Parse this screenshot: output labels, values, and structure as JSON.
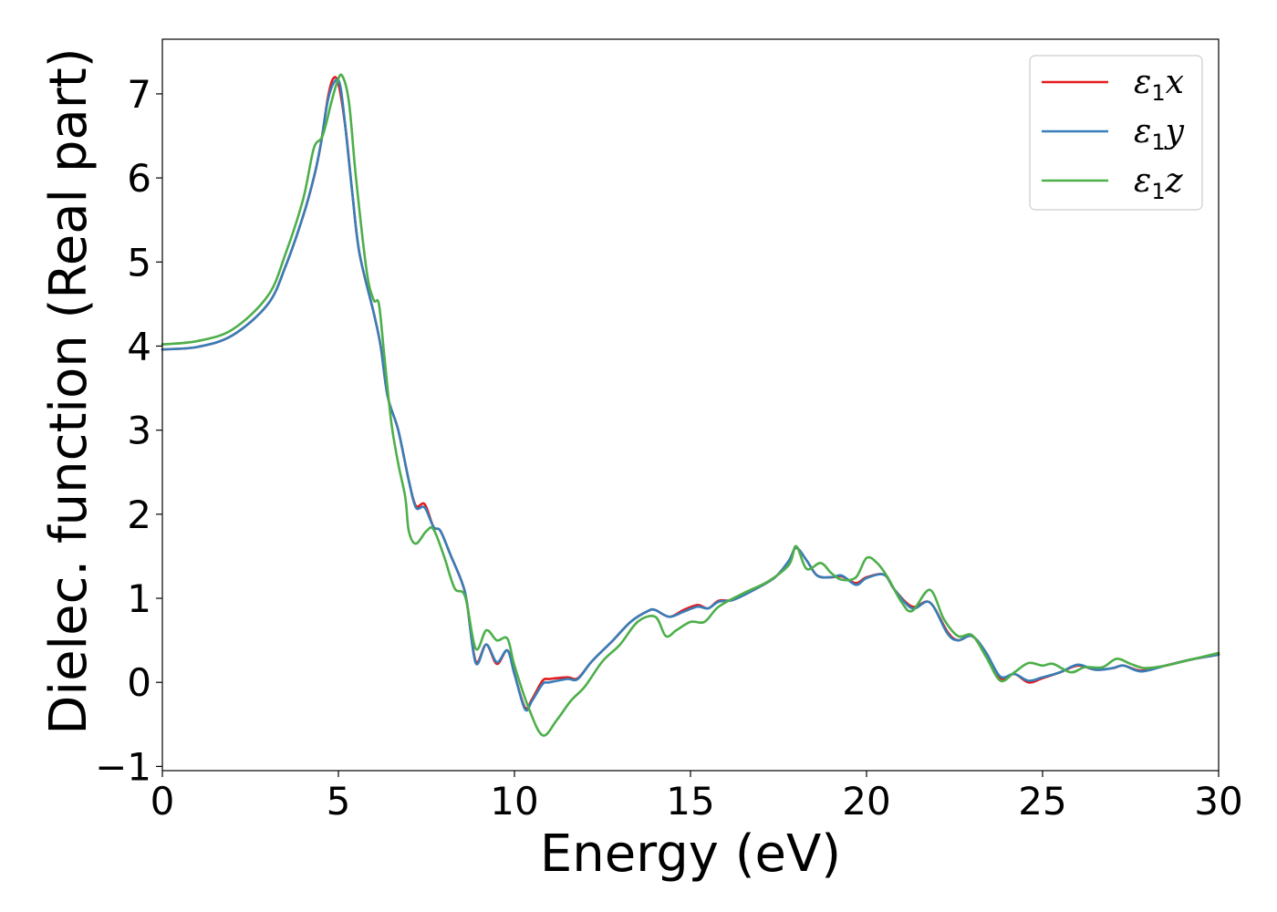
{
  "chart_data": {
    "type": "line",
    "title": "",
    "xlabel": "Energy (eV)",
    "ylabel": "Dielec. function (Real part)",
    "xlim": [
      0,
      30
    ],
    "ylim": [
      -1.05,
      7.65
    ],
    "xticks": [
      0,
      5,
      10,
      15,
      20,
      25,
      30
    ],
    "xtick_labels": [
      "0",
      "5",
      "10",
      "15",
      "20",
      "25",
      "30"
    ],
    "yticks": [
      -1,
      0,
      1,
      2,
      3,
      4,
      5,
      6,
      7
    ],
    "ytick_labels": [
      "−1",
      "0",
      "1",
      "2",
      "3",
      "4",
      "5",
      "6",
      "7"
    ],
    "grid": false,
    "legend_position": "top-right",
    "series": [
      {
        "name": "ε₁x",
        "legend": {
          "base": "ε",
          "sub": "1",
          "comp": "x"
        },
        "color": "#e41a1c",
        "points": [
          [
            0,
            3.96
          ],
          [
            1,
            3.99
          ],
          [
            2,
            4.13
          ],
          [
            3,
            4.5
          ],
          [
            3.5,
            4.95
          ],
          [
            4,
            5.55
          ],
          [
            4.3,
            6.0
          ],
          [
            4.5,
            6.4
          ],
          [
            4.7,
            6.95
          ],
          [
            4.85,
            7.18
          ],
          [
            5.0,
            7.12
          ],
          [
            5.2,
            6.6
          ],
          [
            5.4,
            5.8
          ],
          [
            5.6,
            5.1
          ],
          [
            6.0,
            4.4
          ],
          [
            6.2,
            4.0
          ],
          [
            6.4,
            3.4
          ],
          [
            6.7,
            3.0
          ],
          [
            7.0,
            2.4
          ],
          [
            7.2,
            2.1
          ],
          [
            7.45,
            2.12
          ],
          [
            7.7,
            1.85
          ],
          [
            7.9,
            1.8
          ],
          [
            8.2,
            1.5
          ],
          [
            8.5,
            1.2
          ],
          [
            8.65,
            0.95
          ],
          [
            8.9,
            0.25
          ],
          [
            9.2,
            0.45
          ],
          [
            9.5,
            0.22
          ],
          [
            9.8,
            0.38
          ],
          [
            10.0,
            0.1
          ],
          [
            10.3,
            -0.3
          ],
          [
            10.5,
            -0.2
          ],
          [
            10.8,
            0.02
          ],
          [
            11.0,
            0.04
          ],
          [
            11.5,
            0.06
          ],
          [
            11.8,
            0.05
          ],
          [
            12.2,
            0.25
          ],
          [
            12.8,
            0.5
          ],
          [
            13.3,
            0.72
          ],
          [
            13.8,
            0.85
          ],
          [
            14.0,
            0.86
          ],
          [
            14.4,
            0.78
          ],
          [
            14.8,
            0.86
          ],
          [
            15.2,
            0.92
          ],
          [
            15.5,
            0.88
          ],
          [
            15.8,
            0.97
          ],
          [
            16.2,
            0.98
          ],
          [
            16.8,
            1.1
          ],
          [
            17.4,
            1.25
          ],
          [
            17.8,
            1.45
          ],
          [
            18.0,
            1.6
          ],
          [
            18.3,
            1.45
          ],
          [
            18.6,
            1.27
          ],
          [
            19.0,
            1.25
          ],
          [
            19.3,
            1.26
          ],
          [
            19.7,
            1.18
          ],
          [
            20.0,
            1.25
          ],
          [
            20.5,
            1.28
          ],
          [
            20.8,
            1.1
          ],
          [
            21.3,
            0.9
          ],
          [
            21.8,
            0.95
          ],
          [
            22.3,
            0.6
          ],
          [
            22.6,
            0.5
          ],
          [
            23.0,
            0.55
          ],
          [
            23.4,
            0.35
          ],
          [
            23.8,
            0.05
          ],
          [
            24.2,
            0.1
          ],
          [
            24.6,
            0.0
          ],
          [
            25.0,
            0.05
          ],
          [
            25.5,
            0.12
          ],
          [
            26.0,
            0.2
          ],
          [
            26.5,
            0.15
          ],
          [
            27.0,
            0.17
          ],
          [
            27.3,
            0.2
          ],
          [
            27.8,
            0.14
          ],
          [
            28.5,
            0.2
          ],
          [
            29.2,
            0.27
          ],
          [
            30.0,
            0.33
          ]
        ]
      },
      {
        "name": "ε₁y",
        "legend": {
          "base": "ε",
          "sub": "1",
          "comp": "y"
        },
        "color": "#377eb8",
        "points": [
          [
            0,
            3.96
          ],
          [
            1,
            3.99
          ],
          [
            2,
            4.13
          ],
          [
            3,
            4.5
          ],
          [
            3.5,
            4.95
          ],
          [
            4,
            5.55
          ],
          [
            4.3,
            6.0
          ],
          [
            4.5,
            6.4
          ],
          [
            4.7,
            6.92
          ],
          [
            4.9,
            7.15
          ],
          [
            5.05,
            7.1
          ],
          [
            5.2,
            6.6
          ],
          [
            5.4,
            5.8
          ],
          [
            5.6,
            5.1
          ],
          [
            6.0,
            4.4
          ],
          [
            6.2,
            4.0
          ],
          [
            6.4,
            3.4
          ],
          [
            6.7,
            3.0
          ],
          [
            7.0,
            2.4
          ],
          [
            7.2,
            2.08
          ],
          [
            7.45,
            2.08
          ],
          [
            7.7,
            1.85
          ],
          [
            7.9,
            1.8
          ],
          [
            8.2,
            1.5
          ],
          [
            8.5,
            1.2
          ],
          [
            8.65,
            0.95
          ],
          [
            8.9,
            0.23
          ],
          [
            9.2,
            0.45
          ],
          [
            9.5,
            0.24
          ],
          [
            9.8,
            0.38
          ],
          [
            10.0,
            0.1
          ],
          [
            10.3,
            -0.32
          ],
          [
            10.5,
            -0.22
          ],
          [
            10.8,
            -0.02
          ],
          [
            11.0,
            0.0
          ],
          [
            11.5,
            0.04
          ],
          [
            11.8,
            0.04
          ],
          [
            12.2,
            0.25
          ],
          [
            12.8,
            0.5
          ],
          [
            13.3,
            0.72
          ],
          [
            13.8,
            0.85
          ],
          [
            14.0,
            0.86
          ],
          [
            14.4,
            0.78
          ],
          [
            14.8,
            0.84
          ],
          [
            15.2,
            0.9
          ],
          [
            15.5,
            0.88
          ],
          [
            15.8,
            0.96
          ],
          [
            16.2,
            0.98
          ],
          [
            16.8,
            1.1
          ],
          [
            17.4,
            1.25
          ],
          [
            17.8,
            1.45
          ],
          [
            18.0,
            1.6
          ],
          [
            18.3,
            1.45
          ],
          [
            18.6,
            1.27
          ],
          [
            19.0,
            1.25
          ],
          [
            19.3,
            1.27
          ],
          [
            19.7,
            1.16
          ],
          [
            20.0,
            1.24
          ],
          [
            20.5,
            1.28
          ],
          [
            20.8,
            1.1
          ],
          [
            21.3,
            0.88
          ],
          [
            21.8,
            0.95
          ],
          [
            22.3,
            0.58
          ],
          [
            22.6,
            0.5
          ],
          [
            23.0,
            0.55
          ],
          [
            23.4,
            0.35
          ],
          [
            23.8,
            0.07
          ],
          [
            24.2,
            0.1
          ],
          [
            24.6,
            0.02
          ],
          [
            25.0,
            0.06
          ],
          [
            25.5,
            0.12
          ],
          [
            26.0,
            0.21
          ],
          [
            26.5,
            0.15
          ],
          [
            27.0,
            0.17
          ],
          [
            27.3,
            0.2
          ],
          [
            27.8,
            0.13
          ],
          [
            28.5,
            0.2
          ],
          [
            29.2,
            0.27
          ],
          [
            30.0,
            0.33
          ]
        ]
      },
      {
        "name": "ε₁z",
        "legend": {
          "base": "ε",
          "sub": "1",
          "comp": "z"
        },
        "color": "#4daf4a",
        "points": [
          [
            0,
            4.02
          ],
          [
            1,
            4.06
          ],
          [
            2,
            4.2
          ],
          [
            3,
            4.6
          ],
          [
            3.5,
            5.1
          ],
          [
            4,
            5.75
          ],
          [
            4.3,
            6.35
          ],
          [
            4.55,
            6.5
          ],
          [
            4.8,
            6.9
          ],
          [
            4.95,
            7.12
          ],
          [
            5.1,
            7.22
          ],
          [
            5.3,
            6.9
          ],
          [
            5.5,
            6.0
          ],
          [
            5.8,
            4.9
          ],
          [
            6.0,
            4.55
          ],
          [
            6.15,
            4.5
          ],
          [
            6.3,
            3.9
          ],
          [
            6.5,
            3.1
          ],
          [
            6.7,
            2.6
          ],
          [
            6.9,
            2.2
          ],
          [
            7.0,
            1.8
          ],
          [
            7.2,
            1.65
          ],
          [
            7.5,
            1.8
          ],
          [
            7.7,
            1.82
          ],
          [
            8.0,
            1.5
          ],
          [
            8.3,
            1.12
          ],
          [
            8.6,
            1.02
          ],
          [
            8.9,
            0.4
          ],
          [
            9.2,
            0.62
          ],
          [
            9.5,
            0.5
          ],
          [
            9.8,
            0.52
          ],
          [
            10.0,
            0.2
          ],
          [
            10.4,
            -0.3
          ],
          [
            10.8,
            -0.63
          ],
          [
            11.2,
            -0.45
          ],
          [
            11.6,
            -0.22
          ],
          [
            12.0,
            -0.05
          ],
          [
            12.5,
            0.25
          ],
          [
            13.0,
            0.45
          ],
          [
            13.5,
            0.72
          ],
          [
            14.0,
            0.78
          ],
          [
            14.3,
            0.55
          ],
          [
            14.6,
            0.62
          ],
          [
            15.0,
            0.72
          ],
          [
            15.4,
            0.72
          ],
          [
            15.8,
            0.9
          ],
          [
            16.5,
            1.06
          ],
          [
            17.2,
            1.2
          ],
          [
            17.8,
            1.4
          ],
          [
            18.0,
            1.62
          ],
          [
            18.3,
            1.35
          ],
          [
            18.7,
            1.42
          ],
          [
            19.0,
            1.3
          ],
          [
            19.3,
            1.22
          ],
          [
            19.7,
            1.25
          ],
          [
            20.0,
            1.48
          ],
          [
            20.3,
            1.42
          ],
          [
            20.6,
            1.25
          ],
          [
            21.0,
            0.95
          ],
          [
            21.3,
            0.85
          ],
          [
            21.8,
            1.1
          ],
          [
            22.2,
            0.75
          ],
          [
            22.6,
            0.55
          ],
          [
            23.0,
            0.56
          ],
          [
            23.4,
            0.3
          ],
          [
            23.8,
            0.02
          ],
          [
            24.2,
            0.12
          ],
          [
            24.6,
            0.23
          ],
          [
            25.0,
            0.2
          ],
          [
            25.3,
            0.22
          ],
          [
            25.8,
            0.12
          ],
          [
            26.2,
            0.18
          ],
          [
            26.7,
            0.18
          ],
          [
            27.1,
            0.28
          ],
          [
            27.5,
            0.22
          ],
          [
            27.9,
            0.17
          ],
          [
            28.5,
            0.2
          ],
          [
            29.2,
            0.27
          ],
          [
            30.0,
            0.35
          ]
        ]
      }
    ]
  }
}
